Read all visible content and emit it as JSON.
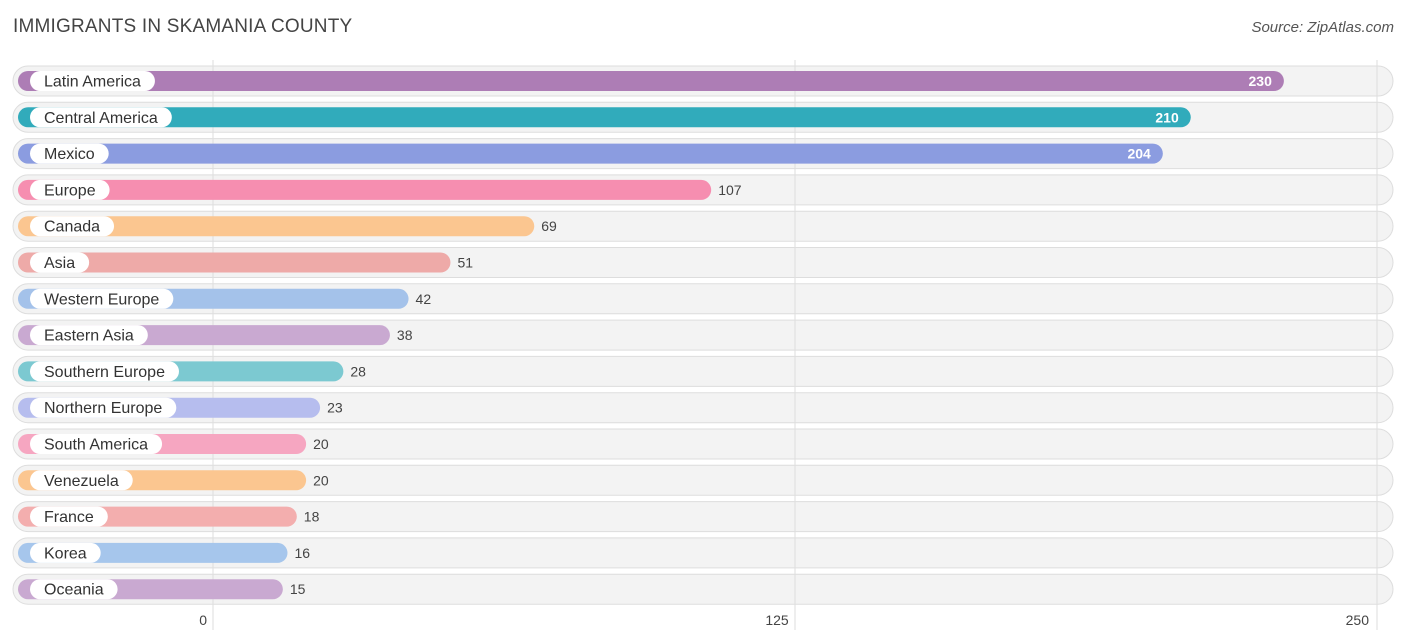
{
  "header": {
    "title": "IMMIGRANTS IN SKAMANIA COUNTY",
    "source": "Source: ZipAtlas.com"
  },
  "chart_data": {
    "type": "bar",
    "orientation": "horizontal",
    "title": "IMMIGRANTS IN SKAMANIA COUNTY",
    "categories": [
      "Latin America",
      "Central America",
      "Mexico",
      "Europe",
      "Canada",
      "Asia",
      "Western Europe",
      "Eastern Asia",
      "Southern Europe",
      "Northern Europe",
      "South America",
      "Venezuela",
      "France",
      "Korea",
      "Oceania"
    ],
    "values": [
      230,
      210,
      204,
      107,
      69,
      51,
      42,
      38,
      28,
      23,
      20,
      20,
      18,
      16,
      15
    ],
    "colors": [
      "#ad7db5",
      "#31abbb",
      "#8b9ce0",
      "#f68eb0",
      "#fbc690",
      "#eeaaa8",
      "#a4c2ea",
      "#c9a9d1",
      "#7cc9d1",
      "#b6bdee",
      "#f6a6c1",
      "#fbc690",
      "#f3aeae",
      "#a6c6ec",
      "#c9a9d1"
    ],
    "xlim": [
      0,
      250
    ],
    "ticks": [
      0,
      125,
      250
    ],
    "grid": true
  }
}
